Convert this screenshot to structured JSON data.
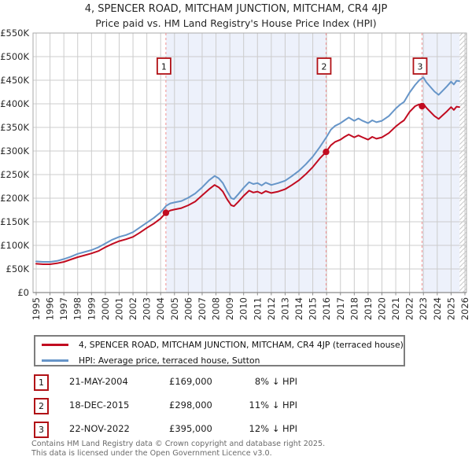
{
  "title": "4, SPENCER ROAD, MITCHAM JUNCTION, MITCHAM, CR4 4JP",
  "subtitle": "Price paid vs. HM Land Registry's House Price Index (HPI)",
  "colors": {
    "property_line": "#c10b20",
    "hpi_line": "#6695c8",
    "shaded_band": "#edf1fb",
    "gridline": "#cccccc",
    "plot_border": "#aaaaaa",
    "sale_dashed_line": "#ef9090",
    "badge_border": "#b11116",
    "hatch_line": "#c9c9c9"
  },
  "chart_data": {
    "type": "line",
    "title": "4, SPENCER ROAD, MITCHAM JUNCTION, MITCHAM, CR4 4JP",
    "subtitle": "Price paid vs. HM Land Registry's House Price Index (HPI)",
    "ylim": [
      0,
      550000
    ],
    "xlim": [
      1994.8,
      2026.15
    ],
    "grid": true,
    "legend_position": "bottom",
    "yticks": [
      {
        "value": 0,
        "label": "£0"
      },
      {
        "value": 50,
        "label": "£50K"
      },
      {
        "value": 100,
        "label": "£100K"
      },
      {
        "value": 150,
        "label": "£150K"
      },
      {
        "value": 200,
        "label": "£200K"
      },
      {
        "value": 250,
        "label": "£250K"
      },
      {
        "value": 300,
        "label": "£300K"
      },
      {
        "value": 350,
        "label": "£350K"
      },
      {
        "value": 400,
        "label": "£400K"
      },
      {
        "value": 450,
        "label": "£450K"
      },
      {
        "value": 500,
        "label": "£500K"
      },
      {
        "value": 550,
        "label": "£550K"
      }
    ],
    "xticks": [
      1995,
      1996,
      1997,
      1998,
      1999,
      2000,
      2001,
      2002,
      2003,
      2004,
      2005,
      2006,
      2007,
      2008,
      2009,
      2010,
      2011,
      2012,
      2013,
      2014,
      2015,
      2016,
      2017,
      2018,
      2019,
      2020,
      2021,
      2022,
      2023,
      2024,
      2025,
      2026
    ],
    "units": "GBP thousands",
    "shaded_bands": [
      [
        2004.38,
        2015.96
      ],
      [
        2022.9,
        2025.62
      ]
    ],
    "future_hatch": [
      2025.62,
      2026.15
    ],
    "series": [
      {
        "name": "4, SPENCER ROAD, MITCHAM JUNCTION, MITCHAM, CR4 4JP (terraced house)",
        "color": "#c10b20",
        "points": [
          [
            1995.0,
            61
          ],
          [
            1995.5,
            60
          ],
          [
            1996.0,
            60
          ],
          [
            1996.5,
            62
          ],
          [
            1997.0,
            65
          ],
          [
            1997.5,
            70
          ],
          [
            1998.0,
            75
          ],
          [
            1998.5,
            79
          ],
          [
            1999.0,
            83
          ],
          [
            1999.5,
            88
          ],
          [
            2000.0,
            96
          ],
          [
            2000.5,
            103
          ],
          [
            2001.0,
            109
          ],
          [
            2001.5,
            113
          ],
          [
            2002.0,
            118
          ],
          [
            2002.5,
            127
          ],
          [
            2003.0,
            137
          ],
          [
            2003.5,
            146
          ],
          [
            2004.0,
            157
          ],
          [
            2004.38,
            169
          ],
          [
            2004.7,
            174
          ],
          [
            2005.0,
            176
          ],
          [
            2005.5,
            179
          ],
          [
            2006.0,
            185
          ],
          [
            2006.5,
            193
          ],
          [
            2007.0,
            206
          ],
          [
            2007.5,
            219
          ],
          [
            2007.9,
            228
          ],
          [
            2008.2,
            223
          ],
          [
            2008.5,
            214
          ],
          [
            2008.8,
            198
          ],
          [
            2009.1,
            185
          ],
          [
            2009.3,
            183
          ],
          [
            2009.6,
            192
          ],
          [
            2010.0,
            205
          ],
          [
            2010.4,
            216
          ],
          [
            2010.7,
            212
          ],
          [
            2011.0,
            214
          ],
          [
            2011.3,
            210
          ],
          [
            2011.6,
            215
          ],
          [
            2012.0,
            211
          ],
          [
            2012.5,
            214
          ],
          [
            2013.0,
            219
          ],
          [
            2013.5,
            228
          ],
          [
            2014.0,
            238
          ],
          [
            2014.5,
            251
          ],
          [
            2015.0,
            266
          ],
          [
            2015.5,
            284
          ],
          [
            2015.96,
            298
          ],
          [
            2016.3,
            312
          ],
          [
            2016.6,
            319
          ],
          [
            2017.0,
            324
          ],
          [
            2017.3,
            330
          ],
          [
            2017.6,
            335
          ],
          [
            2018.0,
            329
          ],
          [
            2018.3,
            333
          ],
          [
            2018.6,
            329
          ],
          [
            2019.0,
            324
          ],
          [
            2019.3,
            330
          ],
          [
            2019.6,
            326
          ],
          [
            2020.0,
            329
          ],
          [
            2020.5,
            338
          ],
          [
            2021.0,
            352
          ],
          [
            2021.3,
            359
          ],
          [
            2021.6,
            365
          ],
          [
            2022.0,
            383
          ],
          [
            2022.4,
            395
          ],
          [
            2022.7,
            399
          ],
          [
            2022.9,
            395
          ],
          [
            2023.0,
            400
          ],
          [
            2023.2,
            392
          ],
          [
            2023.5,
            383
          ],
          [
            2023.8,
            374
          ],
          [
            2024.1,
            368
          ],
          [
            2024.4,
            376
          ],
          [
            2024.7,
            384
          ],
          [
            2025.0,
            393
          ],
          [
            2025.2,
            387
          ],
          [
            2025.4,
            394
          ],
          [
            2025.6,
            393
          ]
        ]
      },
      {
        "name": "HPI: Average price, terraced house, Sutton",
        "color": "#6695c8",
        "points": [
          [
            1995.0,
            66
          ],
          [
            1995.5,
            65
          ],
          [
            1996.0,
            65
          ],
          [
            1996.5,
            67
          ],
          [
            1997.0,
            71
          ],
          [
            1997.5,
            76
          ],
          [
            1998.0,
            82
          ],
          [
            1998.5,
            86
          ],
          [
            1999.0,
            90
          ],
          [
            1999.5,
            96
          ],
          [
            2000.0,
            104
          ],
          [
            2000.5,
            112
          ],
          [
            2001.0,
            118
          ],
          [
            2001.5,
            122
          ],
          [
            2002.0,
            128
          ],
          [
            2002.5,
            138
          ],
          [
            2003.0,
            148
          ],
          [
            2003.5,
            158
          ],
          [
            2004.0,
            170
          ],
          [
            2004.4,
            184
          ],
          [
            2004.7,
            189
          ],
          [
            2005.0,
            191
          ],
          [
            2005.5,
            194
          ],
          [
            2006.0,
            201
          ],
          [
            2006.5,
            210
          ],
          [
            2007.0,
            223
          ],
          [
            2007.5,
            238
          ],
          [
            2007.9,
            247
          ],
          [
            2008.2,
            242
          ],
          [
            2008.5,
            232
          ],
          [
            2008.8,
            215
          ],
          [
            2009.1,
            200
          ],
          [
            2009.3,
            198
          ],
          [
            2009.6,
            208
          ],
          [
            2010.0,
            222
          ],
          [
            2010.4,
            234
          ],
          [
            2010.7,
            230
          ],
          [
            2011.0,
            232
          ],
          [
            2011.3,
            227
          ],
          [
            2011.6,
            233
          ],
          [
            2012.0,
            228
          ],
          [
            2012.5,
            232
          ],
          [
            2013.0,
            237
          ],
          [
            2013.5,
            247
          ],
          [
            2014.0,
            258
          ],
          [
            2014.5,
            272
          ],
          [
            2015.0,
            288
          ],
          [
            2015.5,
            308
          ],
          [
            2016.0,
            330
          ],
          [
            2016.3,
            345
          ],
          [
            2016.6,
            353
          ],
          [
            2017.0,
            359
          ],
          [
            2017.3,
            365
          ],
          [
            2017.6,
            371
          ],
          [
            2018.0,
            364
          ],
          [
            2018.3,
            369
          ],
          [
            2018.6,
            364
          ],
          [
            2019.0,
            359
          ],
          [
            2019.3,
            365
          ],
          [
            2019.6,
            361
          ],
          [
            2020.0,
            364
          ],
          [
            2020.5,
            374
          ],
          [
            2021.0,
            390
          ],
          [
            2021.3,
            398
          ],
          [
            2021.6,
            404
          ],
          [
            2022.0,
            424
          ],
          [
            2022.4,
            440
          ],
          [
            2022.7,
            450
          ],
          [
            2023.0,
            456
          ],
          [
            2023.2,
            446
          ],
          [
            2023.5,
            436
          ],
          [
            2023.8,
            426
          ],
          [
            2024.1,
            419
          ],
          [
            2024.4,
            428
          ],
          [
            2024.7,
            437
          ],
          [
            2025.0,
            447
          ],
          [
            2025.2,
            441
          ],
          [
            2025.4,
            449
          ],
          [
            2025.6,
            448
          ]
        ]
      }
    ],
    "sale_markers": [
      {
        "num": "1",
        "x": 2004.38,
        "value": 169
      },
      {
        "num": "2",
        "x": 2015.96,
        "value": 298
      },
      {
        "num": "3",
        "x": 2022.9,
        "value": 395
      }
    ]
  },
  "legend": {
    "items": [
      {
        "label": "4, SPENCER ROAD, MITCHAM JUNCTION, MITCHAM, CR4 4JP (terraced house)",
        "color": "#c10b20"
      },
      {
        "label": "HPI: Average price, terraced house, Sutton",
        "color": "#6695c8"
      }
    ]
  },
  "sales_table": {
    "rows": [
      {
        "num": "1",
        "date": "21-MAY-2004",
        "price": "£169,000",
        "hpi_diff": "8% ↓ HPI"
      },
      {
        "num": "2",
        "date": "18-DEC-2015",
        "price": "£298,000",
        "hpi_diff": "11% ↓ HPI"
      },
      {
        "num": "3",
        "date": "22-NOV-2022",
        "price": "£395,000",
        "hpi_diff": "12% ↓ HPI"
      }
    ]
  },
  "footer": {
    "line1": "Contains HM Land Registry data © Crown copyright and database right 2025.",
    "line2": "This data is licensed under the Open Government Licence v3.0."
  }
}
